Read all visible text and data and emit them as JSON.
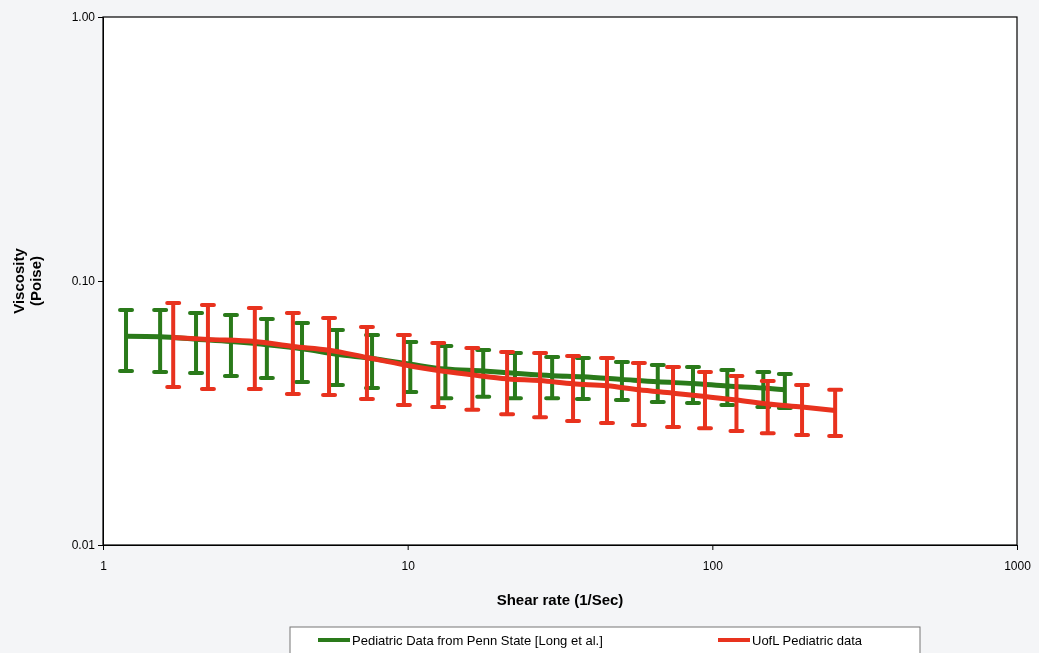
{
  "chart_data": {
    "type": "line",
    "xlabel": "Shear rate (1/Sec)",
    "ylabel": "Viscosity (Poise)",
    "log": "xy",
    "xlim": [
      1,
      1000
    ],
    "xticks": [
      1,
      10,
      100,
      1000
    ],
    "ylim": [
      0.01,
      1
    ],
    "yticks": [
      {
        "value": 0.01,
        "label": "0.01"
      },
      {
        "value": 0.1,
        "label": "0.10"
      },
      {
        "value": 1,
        "label": "1.00"
      }
    ],
    "grid": false,
    "legend": "bottom",
    "marker": "none",
    "line_style": "solid",
    "series": [
      {
        "name": "Pediatric Data from Penn State [Long et al.]",
        "color": "#2a7a1a",
        "x": [
          1.19,
          1.54,
          2.02,
          2.63,
          3.45,
          4.5,
          5.86,
          7.64,
          10.2,
          13.3,
          17.7,
          22.5,
          29.8,
          37.6,
          50.5,
          66.2,
          86.4,
          112,
          147,
          173
        ],
        "values": [
          0.0617,
          0.0615,
          0.0602,
          0.059,
          0.0574,
          0.0554,
          0.0528,
          0.0509,
          0.0484,
          0.0464,
          0.0456,
          0.0447,
          0.0438,
          0.0434,
          0.0424,
          0.0415,
          0.0409,
          0.04,
          0.0393,
          0.0387
        ],
        "errors": [
          [
            0.0456,
            0.0777
          ],
          [
            0.0452,
            0.0777
          ],
          [
            0.0448,
            0.0756
          ],
          [
            0.0437,
            0.0743
          ],
          [
            0.0429,
            0.0718
          ],
          [
            0.0414,
            0.0693
          ],
          [
            0.0404,
            0.0652
          ],
          [
            0.0393,
            0.0624
          ],
          [
            0.038,
            0.0587
          ],
          [
            0.036,
            0.0567
          ],
          [
            0.0364,
            0.0548
          ],
          [
            0.036,
            0.0534
          ],
          [
            0.036,
            0.0515
          ],
          [
            0.0357,
            0.0511
          ],
          [
            0.0354,
            0.0493
          ],
          [
            0.0348,
            0.0481
          ],
          [
            0.0345,
            0.0472
          ],
          [
            0.0339,
            0.046
          ],
          [
            0.0333,
            0.0452
          ],
          [
            0.033,
            0.0444
          ]
        ]
      },
      {
        "name": "UofL Pediatric data",
        "color": "#e8321e",
        "x": [
          1.7,
          2.21,
          3.15,
          4.2,
          5.52,
          7.35,
          9.72,
          12.6,
          16.3,
          21.2,
          27.2,
          34.9,
          45.1,
          57.4,
          74.3,
          94.6,
          120,
          152,
          197,
          253
        ],
        "values": [
          0.0611,
          0.0601,
          0.059,
          0.0565,
          0.0547,
          0.0513,
          0.0482,
          0.0458,
          0.0441,
          0.0426,
          0.042,
          0.0408,
          0.0401,
          0.0387,
          0.0376,
          0.0365,
          0.0354,
          0.0342,
          0.0333,
          0.0323
        ],
        "errors": [
          [
            0.0397,
            0.0825
          ],
          [
            0.039,
            0.0811
          ],
          [
            0.039,
            0.079
          ],
          [
            0.0373,
            0.0756
          ],
          [
            0.037,
            0.0724
          ],
          [
            0.0357,
            0.0669
          ],
          [
            0.0339,
            0.0624
          ],
          [
            0.0333,
            0.0582
          ],
          [
            0.0325,
            0.0557
          ],
          [
            0.0313,
            0.0538
          ],
          [
            0.0305,
            0.0534
          ],
          [
            0.0295,
            0.052
          ],
          [
            0.029,
            0.0511
          ],
          [
            0.0285,
            0.0489
          ],
          [
            0.028,
            0.0472
          ],
          [
            0.0277,
            0.0452
          ],
          [
            0.027,
            0.0437
          ],
          [
            0.0265,
            0.0418
          ],
          [
            0.0261,
            0.0404
          ],
          [
            0.0259,
            0.0387
          ]
        ]
      }
    ]
  }
}
